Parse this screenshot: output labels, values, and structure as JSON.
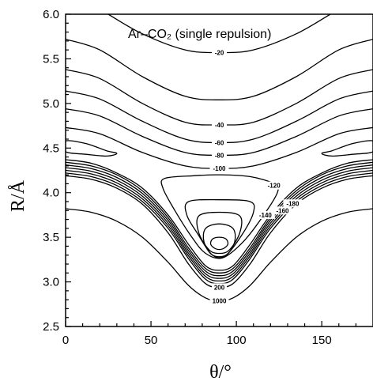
{
  "chart_data": {
    "type": "contour",
    "title": "Ar–CO₂ (single repulsion)",
    "xlabel": "θ/°",
    "ylabel": "R/Å",
    "xlim": [
      0,
      180
    ],
    "ylim": [
      2.5,
      6.0
    ],
    "x_ticks": [
      0,
      50,
      100,
      150
    ],
    "x_tick_labels": [
      "0",
      "50",
      "100",
      "150"
    ],
    "y_ticks": [
      2.5,
      3.0,
      3.5,
      4.0,
      4.5,
      5.0,
      5.5,
      6.0
    ],
    "y_tick_labels": [
      "2.5",
      "3.0",
      "3.5",
      "4.0",
      "4.5",
      "5.0",
      "5.5",
      "6.0"
    ],
    "grid": false,
    "contour_labels": [
      "-20",
      "-40",
      "-60",
      "-80",
      "-100",
      "-120",
      "-140",
      "-160",
      "-180",
      "200",
      "1000"
    ],
    "series": [
      {
        "name": "-20",
        "type": "open",
        "points": [
          [
            25,
            6.0
          ],
          [
            45,
            5.78
          ],
          [
            70,
            5.6
          ],
          [
            90,
            5.57
          ],
          [
            110,
            5.6
          ],
          [
            135,
            5.78
          ],
          [
            155,
            6.0
          ]
        ]
      },
      {
        "name": "-20",
        "type": "open",
        "points": [
          [
            0,
            5.72
          ],
          [
            20,
            5.6
          ],
          [
            45,
            5.3
          ],
          [
            70,
            5.08
          ],
          [
            90,
            5.04
          ],
          [
            110,
            5.08
          ],
          [
            135,
            5.3
          ],
          [
            160,
            5.6
          ],
          [
            180,
            5.72
          ]
        ]
      },
      {
        "name": "-40",
        "type": "open",
        "points": [
          [
            0,
            5.38
          ],
          [
            20,
            5.28
          ],
          [
            45,
            5.0
          ],
          [
            70,
            4.79
          ],
          [
            90,
            4.76
          ],
          [
            110,
            4.79
          ],
          [
            135,
            5.0
          ],
          [
            160,
            5.28
          ],
          [
            180,
            5.38
          ]
        ]
      },
      {
        "name": "-40",
        "type": "open",
        "points": [
          [
            0,
            5.14
          ],
          [
            20,
            5.05
          ],
          [
            45,
            4.8
          ],
          [
            70,
            4.6
          ],
          [
            90,
            4.56
          ],
          [
            110,
            4.6
          ],
          [
            135,
            4.8
          ],
          [
            160,
            5.05
          ],
          [
            180,
            5.14
          ]
        ]
      },
      {
        "name": "-60",
        "type": "open",
        "points": [
          [
            0,
            4.94
          ],
          [
            20,
            4.86
          ],
          [
            45,
            4.63
          ],
          [
            70,
            4.45
          ],
          [
            90,
            4.42
          ],
          [
            110,
            4.45
          ],
          [
            135,
            4.63
          ],
          [
            160,
            4.86
          ],
          [
            180,
            4.94
          ]
        ]
      },
      {
        "name": "-80",
        "type": "open",
        "points": [
          [
            0,
            4.73
          ],
          [
            20,
            4.66
          ],
          [
            45,
            4.45
          ],
          [
            70,
            4.3
          ],
          [
            90,
            4.27
          ],
          [
            110,
            4.3
          ],
          [
            135,
            4.45
          ],
          [
            160,
            4.66
          ],
          [
            180,
            4.73
          ]
        ]
      },
      {
        "name": "-100",
        "type": "open",
        "points": [
          [
            0,
            4.37
          ],
          [
            15,
            4.33
          ],
          [
            30,
            4.22
          ],
          [
            45,
            4.05
          ],
          [
            60,
            3.75
          ],
          [
            72,
            3.42
          ],
          [
            82,
            3.18
          ],
          [
            90,
            3.13
          ],
          [
            98,
            3.18
          ],
          [
            108,
            3.42
          ],
          [
            120,
            3.75
          ],
          [
            135,
            4.05
          ],
          [
            150,
            4.22
          ],
          [
            165,
            4.33
          ],
          [
            180,
            4.37
          ]
        ]
      },
      {
        "name": "-100",
        "type": "open",
        "points": [
          [
            0,
            4.34
          ],
          [
            15,
            4.3
          ],
          [
            30,
            4.2
          ],
          [
            45,
            4.02
          ],
          [
            60,
            3.72
          ],
          [
            72,
            3.38
          ],
          [
            82,
            3.15
          ],
          [
            90,
            3.1
          ],
          [
            98,
            3.15
          ],
          [
            108,
            3.38
          ],
          [
            120,
            3.72
          ],
          [
            135,
            4.02
          ],
          [
            150,
            4.2
          ],
          [
            165,
            4.3
          ],
          [
            180,
            4.34
          ]
        ]
      },
      {
        "name": "-120",
        "type": "open",
        "points": [
          [
            0,
            4.31
          ],
          [
            15,
            4.27
          ],
          [
            30,
            4.17
          ],
          [
            45,
            3.99
          ],
          [
            60,
            3.69
          ],
          [
            72,
            3.35
          ],
          [
            82,
            3.12
          ],
          [
            90,
            3.07
          ],
          [
            98,
            3.12
          ],
          [
            108,
            3.35
          ],
          [
            120,
            3.69
          ],
          [
            135,
            3.99
          ],
          [
            150,
            4.17
          ],
          [
            165,
            4.27
          ],
          [
            180,
            4.31
          ]
        ]
      },
      {
        "name": "-140",
        "type": "open",
        "points": [
          [
            0,
            4.28
          ],
          [
            15,
            4.24
          ],
          [
            30,
            4.14
          ],
          [
            45,
            3.96
          ],
          [
            60,
            3.66
          ],
          [
            72,
            3.32
          ],
          [
            82,
            3.09
          ],
          [
            90,
            3.04
          ],
          [
            98,
            3.09
          ],
          [
            108,
            3.32
          ],
          [
            120,
            3.66
          ],
          [
            135,
            3.96
          ],
          [
            150,
            4.14
          ],
          [
            165,
            4.24
          ],
          [
            180,
            4.28
          ]
        ]
      },
      {
        "name": "-160",
        "type": "open",
        "points": [
          [
            0,
            4.25
          ],
          [
            15,
            4.21
          ],
          [
            30,
            4.11
          ],
          [
            45,
            3.93
          ],
          [
            60,
            3.63
          ],
          [
            72,
            3.29
          ],
          [
            82,
            3.06
          ],
          [
            90,
            3.01
          ],
          [
            98,
            3.06
          ],
          [
            108,
            3.29
          ],
          [
            120,
            3.63
          ],
          [
            135,
            3.93
          ],
          [
            150,
            4.11
          ],
          [
            165,
            4.21
          ],
          [
            180,
            4.25
          ]
        ]
      },
      {
        "name": "-180",
        "type": "open",
        "points": [
          [
            0,
            4.22
          ],
          [
            15,
            4.18
          ],
          [
            30,
            4.08
          ],
          [
            45,
            3.9
          ],
          [
            60,
            3.6
          ],
          [
            72,
            3.26
          ],
          [
            82,
            3.03
          ],
          [
            90,
            2.98
          ],
          [
            98,
            3.03
          ],
          [
            108,
            3.26
          ],
          [
            120,
            3.6
          ],
          [
            135,
            3.9
          ],
          [
            150,
            4.08
          ],
          [
            165,
            4.18
          ],
          [
            180,
            4.22
          ]
        ]
      },
      {
        "name": "200",
        "type": "open",
        "points": [
          [
            0,
            4.19
          ],
          [
            15,
            4.15
          ],
          [
            30,
            4.05
          ],
          [
            45,
            3.87
          ],
          [
            60,
            3.55
          ],
          [
            72,
            3.2
          ],
          [
            82,
            2.98
          ],
          [
            90,
            2.94
          ],
          [
            98,
            2.98
          ],
          [
            108,
            3.2
          ],
          [
            120,
            3.55
          ],
          [
            135,
            3.87
          ],
          [
            150,
            4.05
          ],
          [
            165,
            4.15
          ],
          [
            180,
            4.19
          ]
        ]
      },
      {
        "name": "1000",
        "type": "open",
        "points": [
          [
            0,
            3.82
          ],
          [
            15,
            3.78
          ],
          [
            30,
            3.68
          ],
          [
            45,
            3.5
          ],
          [
            60,
            3.22
          ],
          [
            72,
            2.96
          ],
          [
            82,
            2.82
          ],
          [
            90,
            2.79
          ],
          [
            98,
            2.82
          ],
          [
            108,
            2.96
          ],
          [
            120,
            3.22
          ],
          [
            135,
            3.5
          ],
          [
            150,
            3.68
          ],
          [
            165,
            3.78
          ],
          [
            180,
            3.82
          ]
        ]
      },
      {
        "name": "-100",
        "type": "closed",
        "points": [
          [
            0,
            4.58
          ],
          [
            12,
            4.55
          ],
          [
            24,
            4.47
          ],
          [
            30,
            4.44
          ],
          [
            24,
            4.41
          ],
          [
            12,
            4.43
          ],
          [
            0,
            4.46
          ]
        ]
      },
      {
        "name": "-100",
        "type": "closed",
        "points": [
          [
            180,
            4.58
          ],
          [
            168,
            4.55
          ],
          [
            156,
            4.47
          ],
          [
            150,
            4.44
          ],
          [
            156,
            4.41
          ],
          [
            168,
            4.43
          ],
          [
            180,
            4.46
          ]
        ]
      },
      {
        "name": "-120",
        "type": "closed",
        "points": [
          [
            58,
            4.16
          ],
          [
            75,
            4.19
          ],
          [
            90,
            4.2
          ],
          [
            108,
            4.18
          ],
          [
            122,
            4.1
          ],
          [
            124,
            4.0
          ],
          [
            115,
            3.72
          ],
          [
            104,
            3.45
          ],
          [
            92,
            3.27
          ],
          [
            82,
            3.32
          ],
          [
            74,
            3.5
          ],
          [
            64,
            3.8
          ],
          [
            57,
            4.05
          ]
        ]
      },
      {
        "name": "-140",
        "type": "closed",
        "points": [
          [
            72,
            3.9
          ],
          [
            90,
            3.92
          ],
          [
            108,
            3.9
          ],
          [
            110,
            3.78
          ],
          [
            104,
            3.55
          ],
          [
            94,
            3.3
          ],
          [
            86,
            3.3
          ],
          [
            77,
            3.55
          ],
          [
            71,
            3.75
          ]
        ]
      },
      {
        "name": "-160",
        "type": "closed",
        "points": [
          [
            78,
            3.74
          ],
          [
            90,
            3.78
          ],
          [
            102,
            3.74
          ],
          [
            102,
            3.55
          ],
          [
            96,
            3.36
          ],
          [
            90,
            3.32
          ],
          [
            84,
            3.36
          ],
          [
            78,
            3.55
          ]
        ]
      },
      {
        "name": "-180",
        "type": "closed",
        "points": [
          [
            82,
            3.6
          ],
          [
            90,
            3.65
          ],
          [
            98,
            3.6
          ],
          [
            99,
            3.45
          ],
          [
            94,
            3.3
          ],
          [
            86,
            3.3
          ],
          [
            81,
            3.45
          ]
        ]
      },
      {
        "name": "-180",
        "type": "closed",
        "points": [
          [
            86,
            3.48
          ],
          [
            90,
            3.5
          ],
          [
            94,
            3.48
          ],
          [
            95,
            3.42
          ],
          [
            92,
            3.37
          ],
          [
            88,
            3.37
          ],
          [
            85,
            3.42
          ]
        ]
      }
    ],
    "labels": [
      {
        "text": "-20",
        "x": 90,
        "y": 5.57
      },
      {
        "text": "-40",
        "x": 90,
        "y": 4.76
      },
      {
        "text": "-60",
        "x": 90,
        "y": 4.56
      },
      {
        "text": "-80",
        "x": 90,
        "y": 4.42
      },
      {
        "text": "-100",
        "x": 90,
        "y": 4.27
      },
      {
        "text": "-120",
        "x": 122,
        "y": 4.08
      },
      {
        "text": "-140",
        "x": 117,
        "y": 3.75
      },
      {
        "text": "-160",
        "x": 127,
        "y": 3.8
      },
      {
        "text": "-180",
        "x": 133,
        "y": 3.88
      },
      {
        "text": "200",
        "x": 90,
        "y": 2.94
      },
      {
        "text": "1000",
        "x": 90,
        "y": 2.79
      }
    ]
  }
}
